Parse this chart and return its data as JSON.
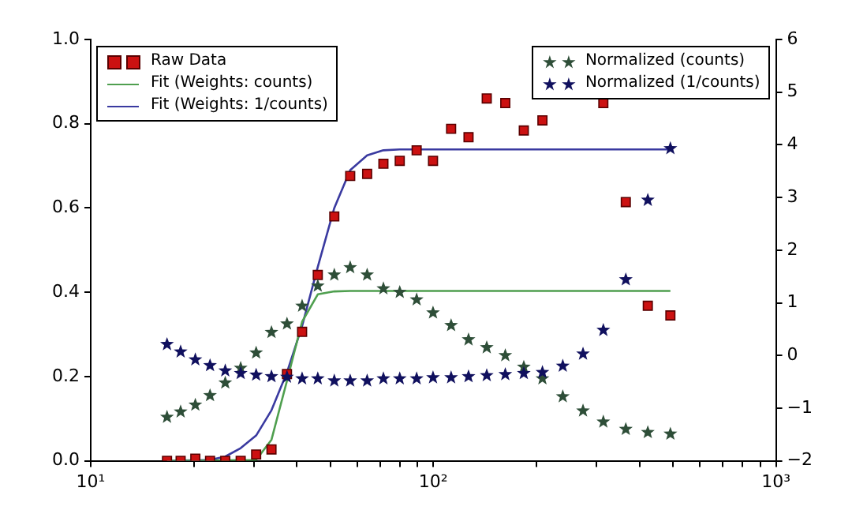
{
  "chart_data": {
    "type": "scatter",
    "x": [
      16.7,
      18.3,
      20.2,
      22.3,
      24.7,
      27.4,
      30.4,
      33.7,
      37.4,
      41.4,
      46.0,
      51.4,
      57.2,
      64.1,
      71.5,
      79.8,
      89.4,
      99.8,
      112.7,
      126.7,
      143.2,
      162.2,
      183.7,
      208.2,
      238.7,
      273.5,
      313.5,
      364.6,
      422.7,
      492
    ],
    "series": [
      {
        "name": "Raw Data",
        "marker": "square",
        "color": "#cc1111",
        "values": [
          0.0,
          0.0,
          0.005,
          0.0,
          0.0,
          0.0,
          0.015,
          0.027,
          0.206,
          0.306,
          0.441,
          0.58,
          0.676,
          0.681,
          0.705,
          0.712,
          0.737,
          0.712,
          0.788,
          0.768,
          0.86,
          0.849,
          0.784,
          0.808,
          null,
          null,
          0.849,
          0.614,
          0.368,
          0.345
        ]
      },
      {
        "name": "Fit (Weights: counts)",
        "type": "line",
        "marker": "none",
        "color": "#4f9f4f",
        "x": [
          16.7,
          30.4,
          33.7,
          37.4,
          41.4,
          46.0,
          51.4,
          57.2,
          492
        ],
        "values": [
          0.0,
          0.002,
          0.05,
          0.19,
          0.33,
          0.395,
          0.402,
          0.403,
          0.403
        ]
      },
      {
        "name": "Fit (Weights: 1/counts)",
        "type": "line",
        "marker": "none",
        "color": "#3a3aa0",
        "x": [
          16.7,
          22.3,
          24.7,
          27.4,
          30.4,
          33.7,
          37.4,
          41.4,
          46.0,
          51.4,
          57.2,
          64.1,
          71.5,
          79.8,
          492
        ],
        "values": [
          0.0,
          0.002,
          0.01,
          0.03,
          0.06,
          0.12,
          0.21,
          0.32,
          0.46,
          0.6,
          0.69,
          0.725,
          0.737,
          0.739,
          0.739
        ]
      },
      {
        "name": "Normalized (counts)",
        "marker": "star",
        "axis": "y2",
        "color": "#2e4e38",
        "values": [
          -1.17,
          -1.07,
          -0.94,
          -0.76,
          -0.52,
          -0.24,
          0.05,
          0.44,
          0.6,
          0.94,
          1.32,
          1.53,
          1.67,
          1.53,
          1.27,
          1.2,
          1.06,
          0.81,
          0.57,
          0.3,
          0.15,
          0.0,
          -0.22,
          -0.44,
          -0.78,
          -1.05,
          -1.26,
          -1.4,
          -1.46,
          -1.49
        ]
      },
      {
        "name": "Normalized (1/counts)",
        "marker": "star",
        "axis": "y2",
        "color": "#10105e",
        "values": [
          0.21,
          0.07,
          -0.08,
          -0.19,
          -0.29,
          -0.34,
          -0.37,
          -0.4,
          -0.41,
          -0.44,
          -0.44,
          -0.48,
          -0.48,
          -0.48,
          -0.44,
          -0.44,
          -0.44,
          -0.42,
          -0.42,
          -0.4,
          -0.38,
          -0.36,
          -0.34,
          -0.32,
          -0.2,
          0.03,
          0.48,
          1.44,
          2.95,
          3.93
        ]
      }
    ],
    "log": "x",
    "xlim": [
      10,
      1000
    ],
    "xticks": [
      {
        "value": 10,
        "label": "10¹"
      },
      {
        "value": 20,
        "label": null
      },
      {
        "value": 30,
        "label": null
      },
      {
        "value": 40,
        "label": null
      },
      {
        "value": 50,
        "label": null
      },
      {
        "value": 60,
        "label": null
      },
      {
        "value": 70,
        "label": null
      },
      {
        "value": 80,
        "label": null
      },
      {
        "value": 90,
        "label": null
      },
      {
        "value": 100,
        "label": "10²"
      },
      {
        "value": 200,
        "label": null
      },
      {
        "value": 300,
        "label": null
      },
      {
        "value": 400,
        "label": null
      },
      {
        "value": 500,
        "label": null
      },
      {
        "value": 600,
        "label": null
      },
      {
        "value": 700,
        "label": null
      },
      {
        "value": 800,
        "label": null
      },
      {
        "value": 900,
        "label": null
      },
      {
        "value": 1000,
        "label": "10³"
      }
    ],
    "ylim": [
      0,
      1.0
    ],
    "yticks": [
      {
        "value": 0,
        "label": "0.0"
      },
      {
        "value": 0.2,
        "label": "0.2"
      },
      {
        "value": 0.4,
        "label": "0.4"
      },
      {
        "value": 0.6,
        "label": "0.6"
      },
      {
        "value": 0.8,
        "label": "0.8"
      },
      {
        "value": 1.0,
        "label": "1.0"
      }
    ],
    "y2lim": [
      -2,
      6
    ],
    "y2ticks": [
      {
        "value": -2,
        "label": "−2"
      },
      {
        "value": -1,
        "label": "−1"
      },
      {
        "value": 0,
        "label": "0"
      },
      {
        "value": 1,
        "label": "1"
      },
      {
        "value": 2,
        "label": "2"
      },
      {
        "value": 3,
        "label": "3"
      },
      {
        "value": 4,
        "label": "4"
      },
      {
        "value": 5,
        "label": "5"
      },
      {
        "value": 6,
        "label": "6"
      }
    ],
    "grid": false,
    "legend": "top left"
  }
}
